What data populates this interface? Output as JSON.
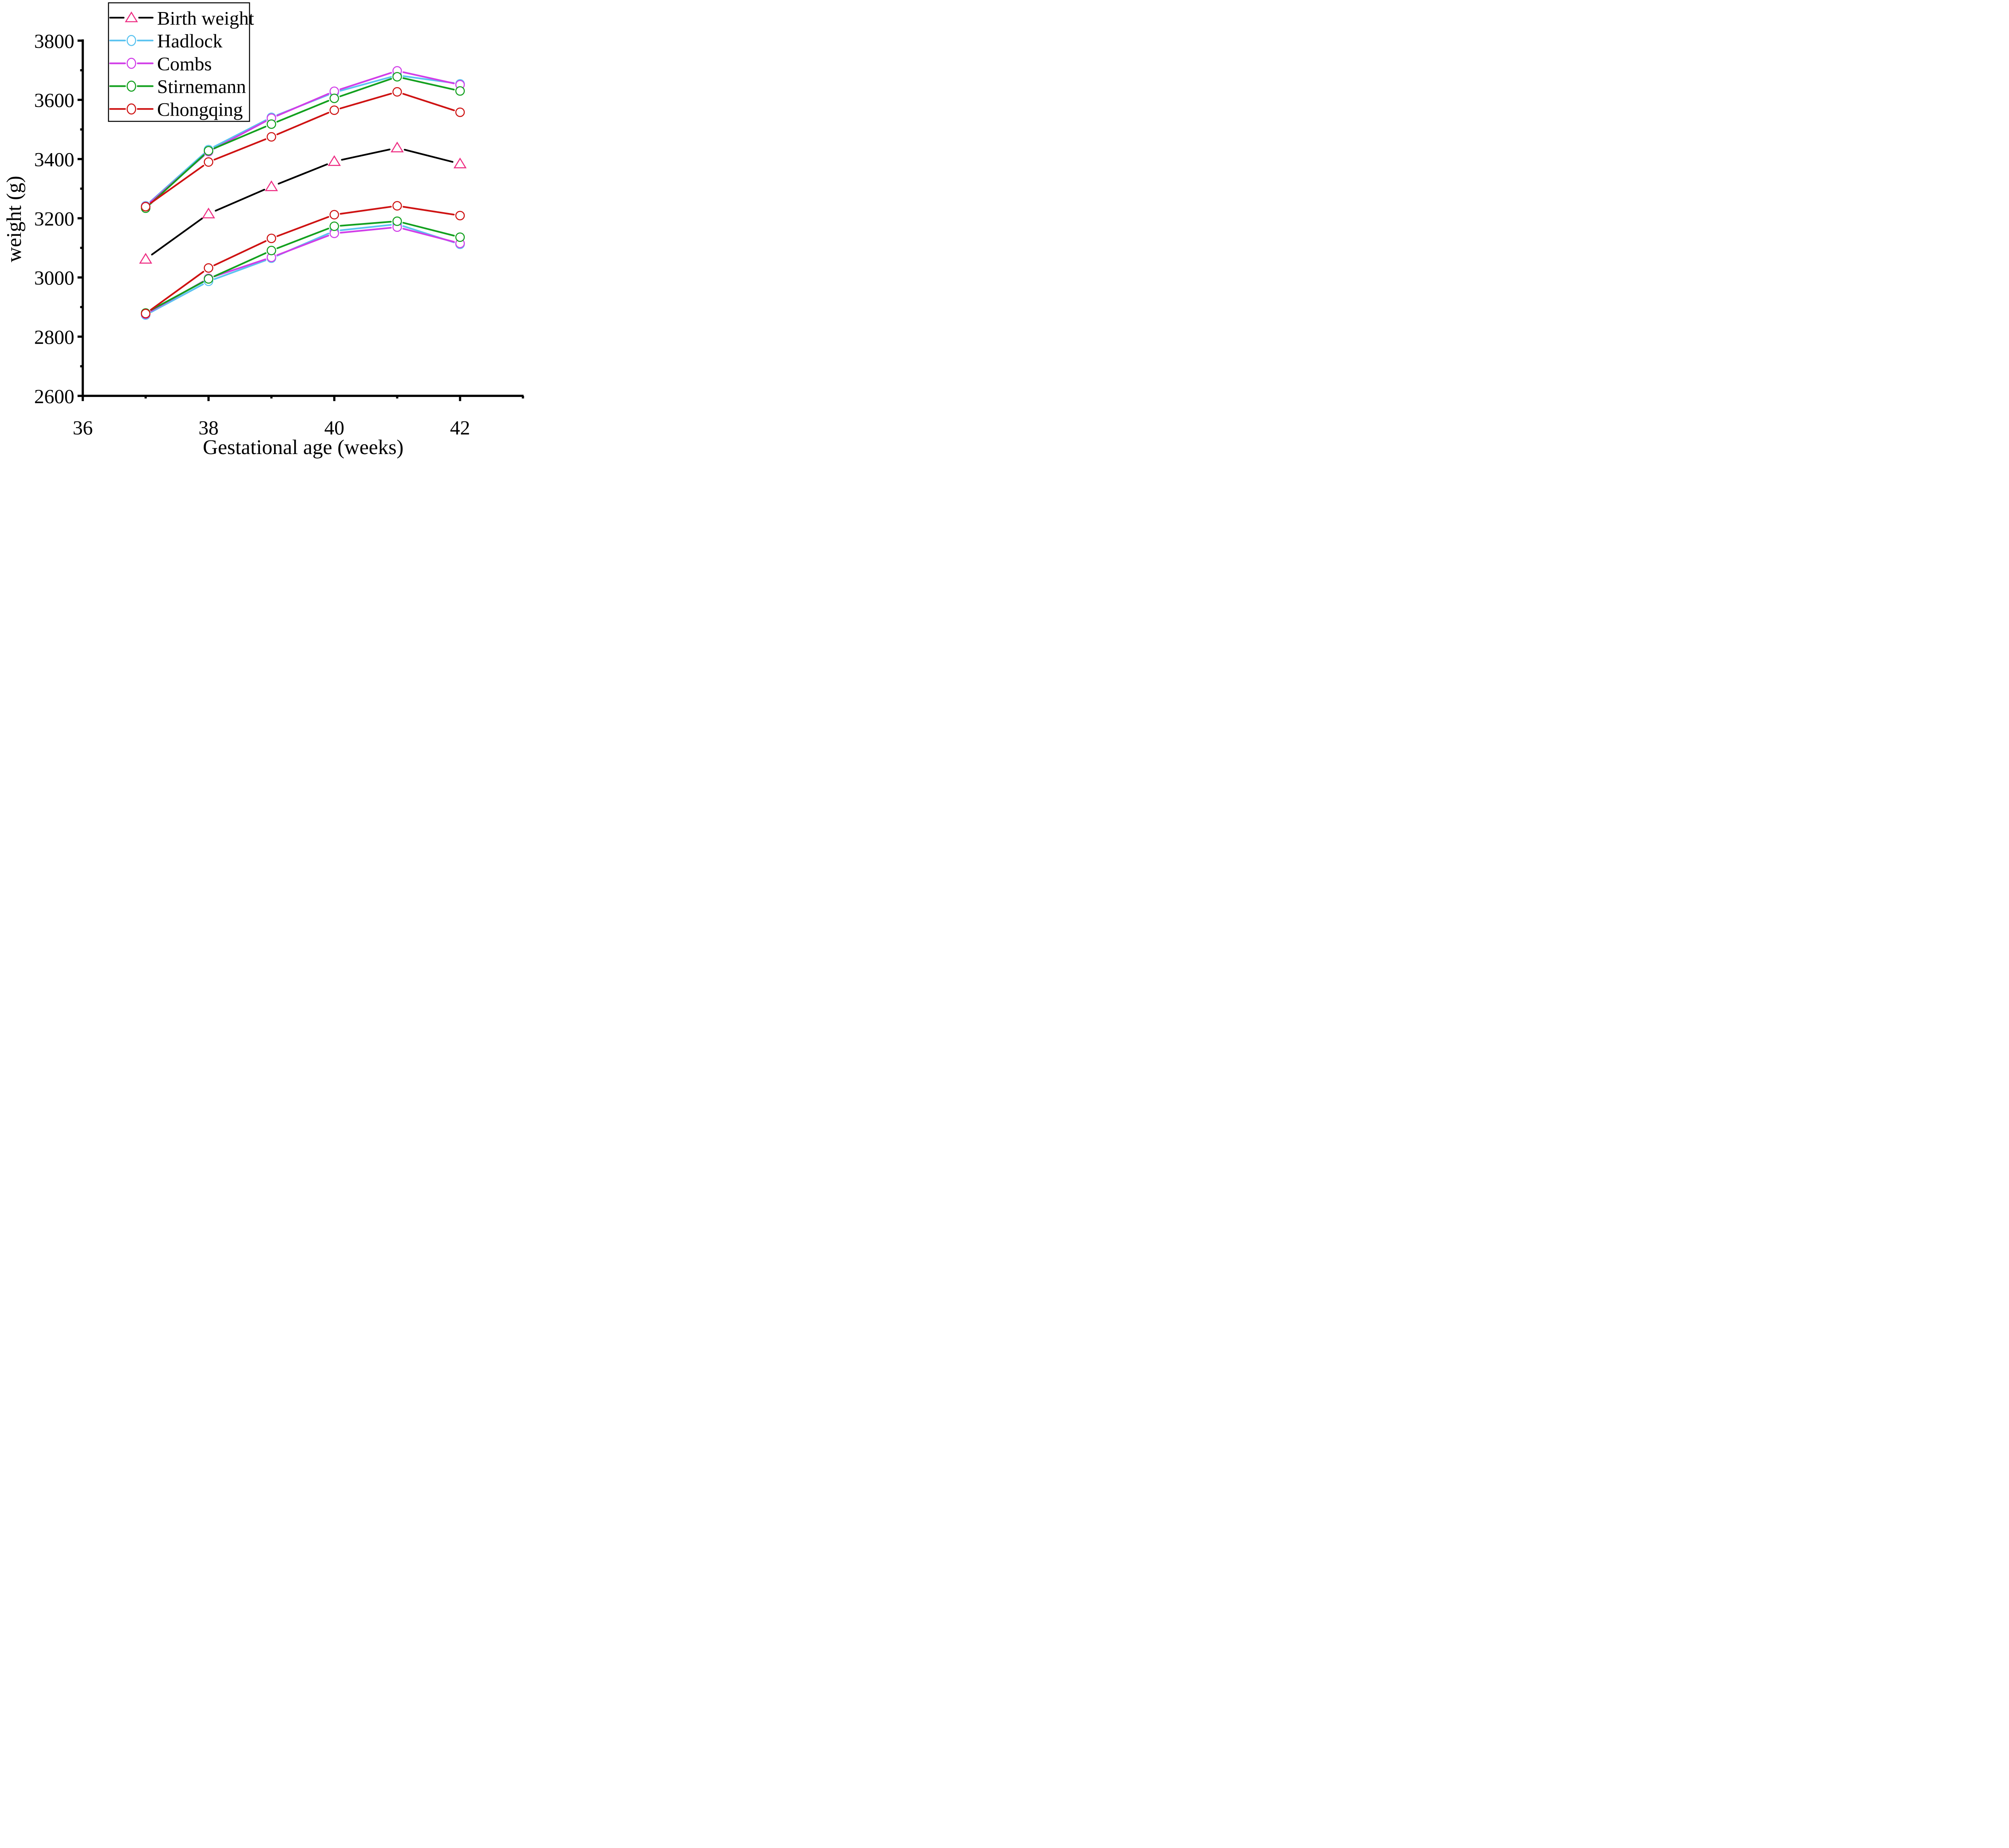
{
  "chart_data": {
    "type": "line",
    "title": "",
    "xlabel": "Gestational age (weeks)",
    "ylabel": "weight (g)",
    "xlim": [
      36,
      43
    ],
    "ylim": [
      2600,
      3800
    ],
    "grid": false,
    "legend_position": "top-left",
    "x_major_ticks": [
      36,
      38,
      40,
      42
    ],
    "x_minor_ticks": [
      37,
      39,
      41,
      43
    ],
    "y_major_ticks": [
      2600,
      2800,
      3000,
      3200,
      3400,
      3600,
      3800
    ],
    "y_minor_ticks": [
      2700,
      2900,
      3100,
      3300,
      3500,
      3700
    ],
    "x": [
      37,
      38,
      39,
      40,
      41,
      42
    ],
    "colors": {
      "birth_line": "#000000",
      "birth_marker": "#EE2C82",
      "hadlock": "#5BC3F0",
      "combs": "#D13DE8",
      "stirnemann": "#12A01E",
      "chongqing": "#CE1212",
      "axis": "#000000",
      "background": "#ffffff"
    },
    "legend": [
      {
        "label": "Birth weight",
        "line_color": "#000000",
        "marker": "triangle",
        "marker_color": "#EE2C82"
      },
      {
        "label": "Hadlock",
        "line_color": "#5BC3F0",
        "marker": "circle",
        "marker_color": "#5BC3F0"
      },
      {
        "label": "Combs",
        "line_color": "#D13DE8",
        "marker": "circle",
        "marker_color": "#D13DE8"
      },
      {
        "label": "Stirnemann",
        "line_color": "#12A01E",
        "marker": "circle",
        "marker_color": "#12A01E"
      },
      {
        "label": "Chongqing",
        "line_color": "#CE1212",
        "marker": "circle",
        "marker_color": "#CE1212"
      }
    ],
    "series": [
      {
        "name": "Birth weight",
        "group": "observed",
        "line_color": "#000000",
        "marker": "triangle",
        "marker_color": "#EE2C82",
        "values": [
          3062,
          3215,
          3307,
          3392,
          3438,
          3384
        ]
      },
      {
        "name": "Hadlock (upper)",
        "group": "upper",
        "line_color": "#5BC3F0",
        "marker": "circle",
        "marker_color": "#5BC3F0",
        "values": [
          3242,
          3432,
          3541,
          3625,
          3683,
          3654
        ]
      },
      {
        "name": "Combs (upper)",
        "group": "upper",
        "line_color": "#D13DE8",
        "marker": "circle",
        "marker_color": "#D13DE8",
        "values": [
          3240,
          3425,
          3538,
          3629,
          3698,
          3651
        ]
      },
      {
        "name": "Stirnemann (upper)",
        "group": "upper",
        "line_color": "#12A01E",
        "marker": "circle",
        "marker_color": "#12A01E",
        "values": [
          3234,
          3428,
          3518,
          3605,
          3678,
          3630
        ]
      },
      {
        "name": "Chongqing (upper)",
        "group": "upper",
        "line_color": "#CE1212",
        "marker": "circle",
        "marker_color": "#CE1212",
        "values": [
          3239,
          3390,
          3475,
          3565,
          3627,
          3558
        ]
      },
      {
        "name": "Hadlock (lower)",
        "group": "lower",
        "line_color": "#5BC3F0",
        "marker": "circle",
        "marker_color": "#5BC3F0",
        "values": [
          2873,
          2987,
          3065,
          3157,
          3180,
          3112
        ]
      },
      {
        "name": "Combs (lower)",
        "group": "lower",
        "line_color": "#D13DE8",
        "marker": "circle",
        "marker_color": "#D13DE8",
        "values": [
          2876,
          2997,
          3068,
          3149,
          3170,
          3115
        ]
      },
      {
        "name": "Stirnemann (lower)",
        "group": "lower",
        "line_color": "#12A01E",
        "marker": "circle",
        "marker_color": "#12A01E",
        "values": [
          2880,
          2995,
          3091,
          3173,
          3190,
          3136
        ]
      },
      {
        "name": "Chongqing (lower)",
        "group": "lower",
        "line_color": "#CE1212",
        "marker": "circle",
        "marker_color": "#CE1212",
        "values": [
          2878,
          3032,
          3132,
          3212,
          3242,
          3209
        ]
      }
    ]
  }
}
